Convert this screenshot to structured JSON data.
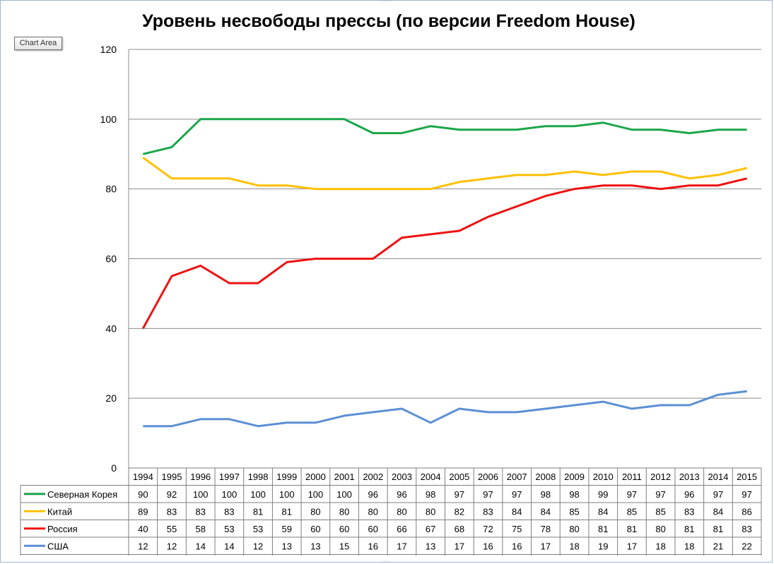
{
  "chart_title": "Уровень несвободы прессы (по версии Freedom House)",
  "ui": {
    "chart_area_tag": "Chart Area"
  },
  "chart_data": {
    "type": "line",
    "title": "Уровень несвободы прессы (по версии Freedom House)",
    "xlabel": "",
    "ylabel": "",
    "ylim": [
      0,
      120
    ],
    "yticks": [
      0,
      20,
      40,
      60,
      80,
      100,
      120
    ],
    "grid": true,
    "legend": "data-table",
    "categories": [
      "1994",
      "1995",
      "1996",
      "1997",
      "1998",
      "1999",
      "2000",
      "2001",
      "2002",
      "2003",
      "2004",
      "2005",
      "2006",
      "2007",
      "2008",
      "2009",
      "2010",
      "2011",
      "2012",
      "2013",
      "2014",
      "2015"
    ],
    "series": [
      {
        "name": "Северная Корея",
        "color": "#1aa64a",
        "values": [
          90,
          92,
          100,
          100,
          100,
          100,
          100,
          100,
          96,
          96,
          98,
          97,
          97,
          97,
          98,
          98,
          99,
          97,
          97,
          96,
          97,
          97
        ]
      },
      {
        "name": "Китай",
        "color": "#ffc000",
        "values": [
          89,
          83,
          83,
          83,
          81,
          81,
          80,
          80,
          80,
          80,
          80,
          82,
          83,
          84,
          84,
          85,
          84,
          85,
          85,
          83,
          84,
          86
        ]
      },
      {
        "name": "Россия",
        "color": "#ee1111",
        "values": [
          40,
          55,
          58,
          53,
          53,
          59,
          60,
          60,
          60,
          66,
          67,
          68,
          72,
          75,
          78,
          80,
          81,
          81,
          80,
          81,
          81,
          83
        ]
      },
      {
        "name": "США",
        "color": "#5b8fd4",
        "values": [
          12,
          12,
          14,
          14,
          12,
          13,
          13,
          15,
          16,
          17,
          13,
          17,
          16,
          16,
          17,
          18,
          19,
          17,
          18,
          18,
          21,
          22
        ]
      }
    ]
  }
}
